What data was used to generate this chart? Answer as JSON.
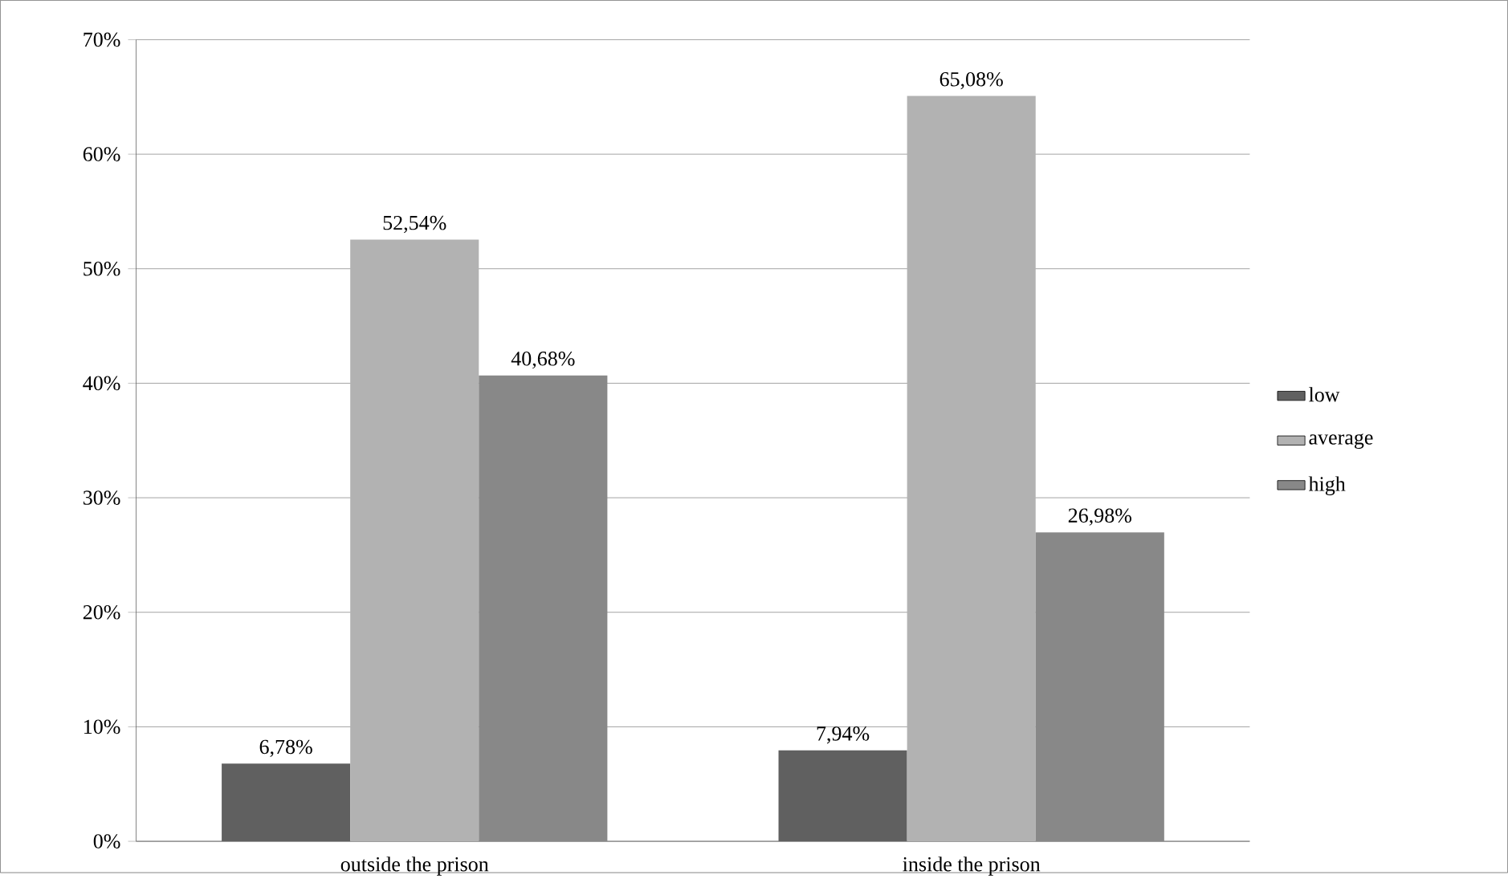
{
  "chart_data": {
    "type": "bar",
    "categories": [
      "outside the prison",
      "inside the prison"
    ],
    "series": [
      {
        "name": "low",
        "color": "#606060",
        "values": [
          6.78,
          7.94
        ],
        "value_labels": [
          "6,78%",
          "7,94%"
        ]
      },
      {
        "name": "average",
        "color": "#b2b2b2",
        "values": [
          52.54,
          65.08
        ],
        "value_labels": [
          "52,54%",
          "65,08%"
        ]
      },
      {
        "name": "high",
        "color": "#888888",
        "values": [
          40.68,
          26.98
        ],
        "value_labels": [
          "40,68%",
          "26,98%"
        ]
      }
    ],
    "ylim": [
      0,
      70
    ],
    "yticks": [
      {
        "value": 0,
        "label": "0%"
      },
      {
        "value": 10,
        "label": "10%"
      },
      {
        "value": 20,
        "label": "20%"
      },
      {
        "value": 30,
        "label": "30%"
      },
      {
        "value": 40,
        "label": "40%"
      },
      {
        "value": 50,
        "label": "50%"
      },
      {
        "value": 60,
        "label": "60%"
      },
      {
        "value": 70,
        "label": "70%"
      }
    ],
    "grid": "y",
    "legend": "right"
  }
}
